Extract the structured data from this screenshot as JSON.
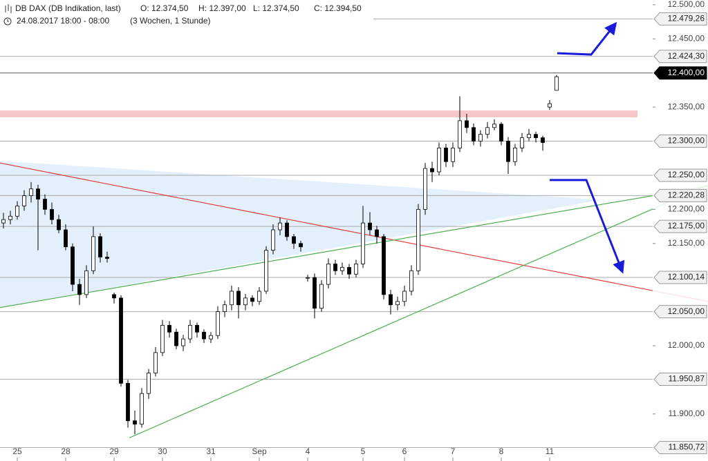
{
  "chart_data": {
    "type": "candlestick",
    "title": "DB DAX (DB Indikation, last)",
    "readout": [
      "O: 12.374,50",
      "H: 12.397,00",
      "L: 12.374,50",
      "C: 12.394,50"
    ],
    "period": "24.08.2017 18:00 - 08:00",
    "range": "(3 Wochen, 1 Stunde)",
    "categories": [
      null,
      null,
      "25",
      null,
      null,
      null,
      null,
      null,
      null,
      "28",
      null,
      null,
      null,
      null,
      null,
      null,
      "29",
      null,
      null,
      null,
      null,
      null,
      null,
      "30",
      null,
      null,
      null,
      null,
      null,
      null,
      "31",
      null,
      null,
      null,
      null,
      null,
      null,
      "Sep",
      null,
      null,
      null,
      null,
      null,
      null,
      "4",
      null,
      null,
      null,
      null,
      null,
      null,
      null,
      "5",
      null,
      null,
      null,
      null,
      null,
      "6",
      null,
      null,
      null,
      null,
      null,
      null,
      "7",
      null,
      null,
      null,
      null,
      null,
      null,
      "8",
      null,
      null,
      null,
      null,
      null,
      null,
      "11",
      null
    ],
    "ohlc": [
      [
        12180,
        12195,
        12172,
        12185
      ],
      [
        12185,
        12198,
        12178,
        12190
      ],
      [
        12190,
        12212,
        12185,
        12205
      ],
      [
        12205,
        12228,
        12198,
        12220
      ],
      [
        12220,
        12240,
        12210,
        12230
      ],
      [
        12230,
        12236,
        12140,
        12215
      ],
      [
        12215,
        12222,
        12192,
        12200
      ],
      [
        12200,
        12210,
        12178,
        12185
      ],
      [
        12185,
        12192,
        12165,
        12170
      ],
      [
        12170,
        12178,
        12140,
        12145
      ],
      [
        12145,
        12150,
        12080,
        12090
      ],
      [
        12090,
        12098,
        12060,
        12075
      ],
      [
        12075,
        12118,
        12070,
        12110
      ],
      [
        12110,
        12175,
        12105,
        12160
      ],
      [
        12160,
        12165,
        12122,
        12130
      ],
      [
        12130,
        12138,
        12122,
        12128
      ],
      [
        12075,
        12078,
        12062,
        12070
      ],
      [
        12070,
        12074,
        11940,
        11945
      ],
      [
        11945,
        11950,
        11880,
        11890
      ],
      [
        11890,
        11905,
        11870,
        11885
      ],
      [
        11885,
        11938,
        11880,
        11930
      ],
      [
        11930,
        11966,
        11922,
        11960
      ],
      [
        11960,
        11998,
        11955,
        11990
      ],
      [
        11990,
        12038,
        11985,
        12030
      ],
      [
        12030,
        12036,
        12012,
        12020
      ],
      [
        12020,
        12025,
        11995,
        12000
      ],
      [
        12000,
        12016,
        11992,
        12010
      ],
      [
        12010,
        12038,
        12004,
        12030
      ],
      [
        12030,
        12034,
        12012,
        12020
      ],
      [
        12020,
        12024,
        12004,
        12010
      ],
      [
        12010,
        12020,
        12004,
        12015
      ],
      [
        12015,
        12058,
        12010,
        12050
      ],
      [
        12050,
        12066,
        12042,
        12060
      ],
      [
        12060,
        12088,
        12052,
        12080
      ],
      [
        12080,
        12086,
        12040,
        12060
      ],
      [
        12060,
        12076,
        12052,
        12070
      ],
      [
        12070,
        12074,
        12058,
        12065
      ],
      [
        12065,
        12086,
        12060,
        12080
      ],
      [
        12080,
        12146,
        12076,
        12140
      ],
      [
        12140,
        12178,
        12134,
        12170
      ],
      [
        12170,
        12188,
        12162,
        12180
      ],
      [
        12180,
        12184,
        12154,
        12160
      ],
      [
        12160,
        12164,
        12142,
        12150
      ],
      [
        12150,
        12154,
        12138,
        12145
      ],
      [
        12100,
        12104,
        12094,
        12100
      ],
      [
        12100,
        12106,
        12040,
        12055
      ],
      [
        12055,
        12096,
        12050,
        12090
      ],
      [
        12090,
        12128,
        12084,
        12120
      ],
      [
        12120,
        12126,
        12104,
        12110
      ],
      [
        12110,
        12122,
        12104,
        12115
      ],
      [
        12115,
        12120,
        12098,
        12105
      ],
      [
        12105,
        12126,
        12100,
        12120
      ],
      [
        12120,
        12205,
        12114,
        12180
      ],
      [
        12180,
        12196,
        12162,
        12170
      ],
      [
        12170,
        12176,
        12150,
        12160
      ],
      [
        12160,
        12164,
        12068,
        12075
      ],
      [
        12075,
        12082,
        12046,
        12060
      ],
      [
        12060,
        12072,
        12052,
        12065
      ],
      [
        12065,
        12088,
        12058,
        12080
      ],
      [
        12080,
        12118,
        12074,
        12110
      ],
      [
        12110,
        12208,
        12104,
        12200
      ],
      [
        12200,
        12268,
        12192,
        12260
      ],
      [
        12260,
        12270,
        12240,
        12255
      ],
      [
        12255,
        12298,
        12250,
        12290
      ],
      [
        12290,
        12296,
        12262,
        12270
      ],
      [
        12270,
        12298,
        12262,
        12290
      ],
      [
        12290,
        12366,
        12284,
        12330
      ],
      [
        12330,
        12340,
        12312,
        12320
      ],
      [
        12320,
        12326,
        12294,
        12300
      ],
      [
        12300,
        12316,
        12292,
        12310
      ],
      [
        12310,
        12328,
        12304,
        12320
      ],
      [
        12320,
        12332,
        12316,
        12325
      ],
      [
        12325,
        12328,
        12294,
        12300
      ],
      [
        12300,
        12306,
        12252,
        12270
      ],
      [
        12270,
        12296,
        12264,
        12290
      ],
      [
        12290,
        12312,
        12284,
        12305
      ],
      [
        12305,
        12318,
        12300,
        12310
      ],
      [
        12310,
        12314,
        12298,
        12305
      ],
      [
        12305,
        12308,
        12286,
        12298
      ],
      [
        12350,
        12360,
        12346,
        12355
      ],
      [
        12374.5,
        12397,
        12374.5,
        12394.5
      ]
    ],
    "xlim": [
      -0.5,
      101.9
    ],
    "ylim": [
      11831,
      12507
    ],
    "yticks": [
      {
        "value": 12500,
        "label": "12.500,00"
      },
      {
        "value": 12450,
        "label": "12.450,00"
      },
      {
        "value": 12350,
        "label": "12.350,00"
      },
      {
        "value": 12200,
        "label": "12.200,00"
      },
      {
        "value": 12150,
        "label": "12.150,00"
      },
      {
        "value": 12000,
        "label": "12.000,00"
      },
      {
        "value": 11900,
        "label": "11.900,00"
      }
    ],
    "levels": [
      {
        "value": 12479.26,
        "label": "12.479,26"
      },
      {
        "value": 12424.3,
        "label": "12.424,30"
      },
      {
        "value": 12400,
        "label": "12.400,00",
        "style": "dark"
      },
      {
        "value": 12300,
        "label": "12.300,00"
      },
      {
        "value": 12250,
        "label": "12.250,00"
      },
      {
        "value": 12220.28,
        "label": "12.220,28"
      },
      {
        "value": 12175,
        "label": "12.175,00"
      },
      {
        "value": 12100.14,
        "label": "12.100,14"
      },
      {
        "value": 12050,
        "label": "12.050,00"
      },
      {
        "value": 11950.87,
        "label": "11.950,87"
      },
      {
        "value": 11850.72,
        "label": "11.850,72"
      }
    ],
    "zone": {
      "x": [
        -0.5,
        91.7
      ],
      "y": [
        12335,
        12345
      ],
      "color": "#f7c6c9"
    },
    "triangle": {
      "x": [
        -0.5,
        86.5,
        -0.5
      ],
      "y": [
        12271,
        12214,
        12056
      ],
      "color": "#e3effb"
    },
    "trendlines": [
      {
        "color": "#e53935",
        "x": [
          -0.5,
          101.9
        ],
        "y": [
          12268,
          12065
        ]
      },
      {
        "color": "#4caf50",
        "x": [
          -0.5,
          101.9
        ],
        "y": [
          12056,
          12234
        ]
      },
      {
        "color": "#4caf50",
        "x": [
          18.2,
          101.9
        ],
        "y": [
          11865,
          12236
        ]
      }
    ],
    "arrows": [
      {
        "color": "#1a1adb",
        "x": [
          80.1,
          85,
          88.5
        ],
        "y": [
          12429,
          12427,
          12472
        ]
      },
      {
        "color": "#1a1adb",
        "x": [
          79,
          84.3,
          89.5
        ],
        "y": [
          12243,
          12243,
          12109
        ]
      }
    ],
    "up_color": "#ffffff",
    "down_color": "#000000"
  }
}
